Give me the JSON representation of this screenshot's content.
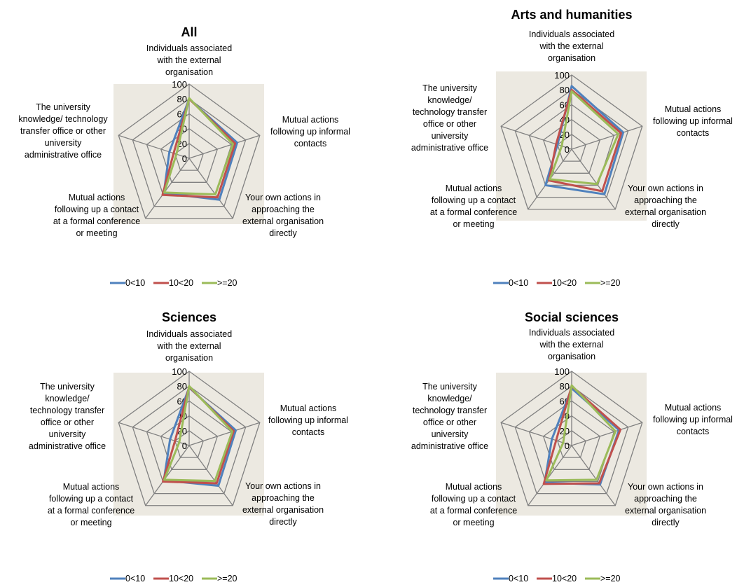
{
  "colors": {
    "plot_background": "#ece9e1",
    "grid": "#808080",
    "series": [
      "#4f81bd",
      "#c0504d",
      "#9bbb59"
    ]
  },
  "chart_data": [
    {
      "type": "radar",
      "title": "All",
      "axes": [
        "Individuals associated with the external organisation",
        "Mutual actions following up informal contacts",
        "Your own actions in approaching the external organisation directly",
        "Mutual actions following up a contact at a formal conference or meeting",
        "The university knowledge/ technology transfer office or other university administrative office"
      ],
      "r_ticks": [
        "0",
        "20",
        "40",
        "60",
        "80",
        "100"
      ],
      "rlim": [
        0,
        100
      ],
      "legend_position": "bottom",
      "series": [
        {
          "name": "0<10",
          "values": [
            80,
            68,
            69,
            58,
            28
          ]
        },
        {
          "name": "10<20",
          "values": [
            80,
            65,
            65,
            61,
            22
          ]
        },
        {
          "name": "&gt;=20",
          "values": [
            81,
            62,
            60,
            57,
            18
          ]
        }
      ]
    },
    {
      "type": "radar",
      "title": "Arts and humanities",
      "axes": [
        "Individuals associated with the external organisation",
        "Mutual actions following up informal contacts",
        "Your own actions in approaching the external organisation directly",
        "Mutual actions following up a contact at a formal conference or meeting",
        "The university knowledge/ technology transfer office or other university administrative office"
      ],
      "r_ticks": [
        "0",
        "20",
        "40",
        "60",
        "80",
        "100"
      ],
      "rlim": [
        0,
        100
      ],
      "legend_position": "bottom",
      "series": [
        {
          "name": "0<10",
          "values": [
            85,
            73,
            75,
            60,
            20
          ]
        },
        {
          "name": "10<20",
          "values": [
            80,
            70,
            70,
            52,
            22
          ]
        },
        {
          "name": "&gt;=20",
          "values": [
            78,
            66,
            58,
            50,
            14
          ]
        }
      ]
    },
    {
      "type": "radar",
      "title": "Sciences",
      "axes": [
        "Individuals associated with the external organisation",
        "Mutual actions following up informal contacts",
        "Your own actions in approaching the external organisation directly",
        "Mutual actions following up a contact at a formal conference or meeting",
        "The university knowledge/ technology transfer office or other university administrative office"
      ],
      "r_ticks": [
        "0",
        "20",
        "40",
        "60",
        "80",
        "100"
      ],
      "rlim": [
        0,
        100
      ],
      "legend_position": "bottom",
      "series": [
        {
          "name": "0<10",
          "values": [
            78,
            66,
            67,
            58,
            27
          ]
        },
        {
          "name": "10<20",
          "values": [
            79,
            63,
            63,
            60,
            20
          ]
        },
        {
          "name": "&gt;=20",
          "values": [
            80,
            61,
            59,
            57,
            14
          ]
        }
      ]
    },
    {
      "type": "radar",
      "title": "Social sciences",
      "axes": [
        "Individuals associated with the external organisation",
        "Mutual actions following up informal contacts",
        "Your own actions in approaching the external organisation directly",
        "Mutual actions following up a contact at a formal conference or meeting",
        "The university knowledge/ technology transfer office or other university administrative office"
      ],
      "r_ticks": [
        "0",
        "20",
        "40",
        "60",
        "80",
        "100"
      ],
      "rlim": [
        0,
        100
      ],
      "legend_position": "bottom",
      "series": [
        {
          "name": "0<10",
          "values": [
            77,
            67,
            65,
            62,
            28
          ]
        },
        {
          "name": "10<20",
          "values": [
            80,
            69,
            63,
            64,
            22
          ]
        },
        {
          "name": "&gt;=20",
          "values": [
            81,
            62,
            57,
            58,
            12
          ]
        }
      ]
    }
  ]
}
